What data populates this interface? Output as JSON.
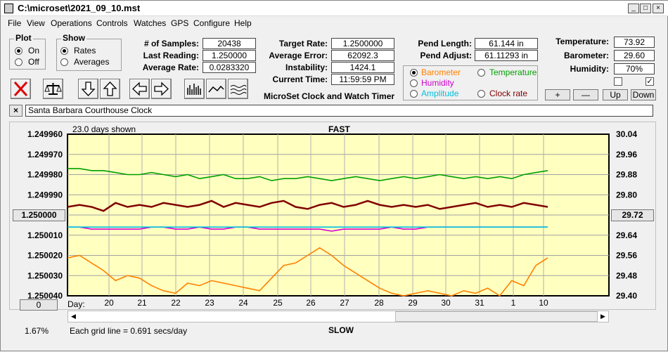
{
  "window": {
    "title": "C:\\microset\\2021_09_10.mst"
  },
  "menu": [
    "File",
    "View",
    "Operations",
    "Controls",
    "Watches",
    "GPS",
    "Configure",
    "Help"
  ],
  "plot_group": {
    "title": "Plot",
    "options": [
      "On",
      "Off"
    ],
    "selected": "On"
  },
  "show_group": {
    "title": "Show",
    "options": [
      "Rates",
      "Averages"
    ],
    "selected": "Rates"
  },
  "stats": {
    "samples_label": "# of Samples:",
    "samples": "20438",
    "last_label": "Last Reading:",
    "last": "1.250000",
    "avg_rate_label": "Average Rate:",
    "avg_rate": "0.0283320",
    "target_label": "Target Rate:",
    "target": "1.2500000",
    "avg_err_label": "Average Error:",
    "avg_err": "62092.3 min/day",
    "instab_label": "Instability:",
    "instab": "1424.1 mins/day",
    "time_label": "Current Time:",
    "time": "11:59:59 PM",
    "pend_len_label": "Pend Length:",
    "pend_len": "61.144 in",
    "pend_adj_label": "Pend Adjust:",
    "pend_adj": "61.11293 in",
    "temp_label": "Temperature:",
    "temp": "73.92",
    "baro_label": "Barometer:",
    "baro": "29.60",
    "hum_label": "Humidity:",
    "hum": "70%"
  },
  "app_caption": "MicroSet Clock and Watch Timer",
  "sensor_group": [
    {
      "label": "Barometer",
      "color": "#ff8000",
      "selected": true
    },
    {
      "label": "Temperature",
      "color": "#00a000",
      "selected": false
    },
    {
      "label": "Humidity",
      "color": "#d000d0",
      "selected": false
    },
    {
      "label": "Amplitude",
      "color": "#00c0e0",
      "selected": false
    },
    {
      "label": "Clock rate",
      "color": "#800000",
      "selected": false
    }
  ],
  "scale_buttons": {
    "plus": "+",
    "minus": "—",
    "up": "Up",
    "down": "Down"
  },
  "watch_name": "Santa Barbara Courthouse Clock",
  "close_x": "×",
  "chart_header": {
    "days_shown": "23.0 days shown",
    "top": "FAST",
    "bottom": "SLOW"
  },
  "footer": {
    "percent": "1.67%",
    "grid": "Each grid line = 0.691 secs/day",
    "day_label": "Day:",
    "left_button": "0",
    "center_button": "1.250000",
    "right_button": "29.72"
  },
  "chart_data": {
    "type": "line",
    "x_ticks": [
      "20",
      "21",
      "22",
      "23",
      "24",
      "25",
      "26",
      "27",
      "28",
      "29",
      "30",
      "31",
      "1",
      "10"
    ],
    "left_axis": {
      "ticks": [
        "1.249960",
        "1.249970",
        "1.249980",
        "1.249990",
        "1.250000",
        "1.250010",
        "1.250020",
        "1.250030",
        "1.250040"
      ],
      "range": [
        1.24996,
        1.25004
      ],
      "inverted": true
    },
    "right_axis": {
      "ticks": [
        "30.04",
        "29.96",
        "29.88",
        "29.80",
        "29.72",
        "29.64",
        "29.56",
        "29.48",
        "29.40"
      ],
      "range": [
        29.4,
        30.04
      ]
    },
    "series": [
      {
        "name": "Temperature",
        "color": "#00a000",
        "axis": "left",
        "values": [
          1.249977,
          1.249977,
          1.249978,
          1.249978,
          1.249979,
          1.24998,
          1.24998,
          1.249979,
          1.24998,
          1.249981,
          1.24998,
          1.249982,
          1.249981,
          1.24998,
          1.249982,
          1.249982,
          1.249981,
          1.249983,
          1.249982,
          1.249982,
          1.249981,
          1.249982,
          1.249983,
          1.249982,
          1.249981,
          1.249982,
          1.249983,
          1.249982,
          1.249981,
          1.249982,
          1.249981,
          1.24998,
          1.249981,
          1.249982,
          1.249981,
          1.249982,
          1.249981,
          1.249982,
          1.24998,
          1.249979,
          1.249978
        ]
      },
      {
        "name": "Clock rate",
        "color": "#800000",
        "axis": "left",
        "values": [
          1.249996,
          1.249995,
          1.249996,
          1.249998,
          1.249994,
          1.249996,
          1.249995,
          1.249996,
          1.249994,
          1.249995,
          1.249996,
          1.249995,
          1.249993,
          1.249996,
          1.249994,
          1.249995,
          1.249996,
          1.249994,
          1.249993,
          1.249996,
          1.249997,
          1.249995,
          1.249994,
          1.249996,
          1.249995,
          1.249993,
          1.249995,
          1.249996,
          1.249995,
          1.249996,
          1.249995,
          1.249997,
          1.249996,
          1.249995,
          1.249994,
          1.249996,
          1.249995,
          1.249996,
          1.249994,
          1.249995,
          1.249996
        ]
      },
      {
        "name": "Humidity",
        "color": "#d000d0",
        "axis": "left",
        "values": [
          1.250006,
          1.250006,
          1.250007,
          1.250007,
          1.250007,
          1.250007,
          1.250007,
          1.250006,
          1.250006,
          1.250007,
          1.250007,
          1.250006,
          1.250007,
          1.250007,
          1.250006,
          1.250006,
          1.250007,
          1.250007,
          1.250007,
          1.250007,
          1.250007,
          1.250007,
          1.250008,
          1.250007,
          1.250007,
          1.250007,
          1.250007,
          1.250006,
          1.250007,
          1.250007,
          1.250006,
          1.250006,
          1.250006,
          1.250006,
          1.250006,
          1.250006,
          1.250006,
          1.250006,
          1.250006,
          1.250006,
          1.250006
        ]
      },
      {
        "name": "Amplitude",
        "color": "#00c0e0",
        "axis": "left",
        "values": [
          1.250006,
          1.250006,
          1.250006,
          1.250006,
          1.250006,
          1.250006,
          1.250006,
          1.250006,
          1.250006,
          1.250006,
          1.250006,
          1.250006,
          1.250006,
          1.250006,
          1.250006,
          1.250006,
          1.250006,
          1.250006,
          1.250006,
          1.250006,
          1.250006,
          1.250006,
          1.250006,
          1.250006,
          1.250006,
          1.250006,
          1.250006,
          1.250006,
          1.250006,
          1.250006,
          1.250006,
          1.250006,
          1.250006,
          1.250006,
          1.250006,
          1.250006,
          1.250006,
          1.250006,
          1.250006,
          1.250006,
          1.250006
        ]
      },
      {
        "name": "Barometer",
        "color": "#ff8000",
        "axis": "right",
        "values": [
          29.55,
          29.56,
          29.53,
          29.5,
          29.46,
          29.48,
          29.47,
          29.44,
          29.42,
          29.41,
          29.45,
          29.44,
          29.46,
          29.45,
          29.44,
          29.43,
          29.42,
          29.47,
          29.52,
          29.53,
          29.56,
          29.59,
          29.56,
          29.52,
          29.49,
          29.46,
          29.43,
          29.41,
          29.4,
          29.41,
          29.42,
          29.41,
          29.4,
          29.42,
          29.41,
          29.43,
          29.4,
          29.46,
          29.44,
          29.52,
          29.55
        ]
      }
    ]
  }
}
